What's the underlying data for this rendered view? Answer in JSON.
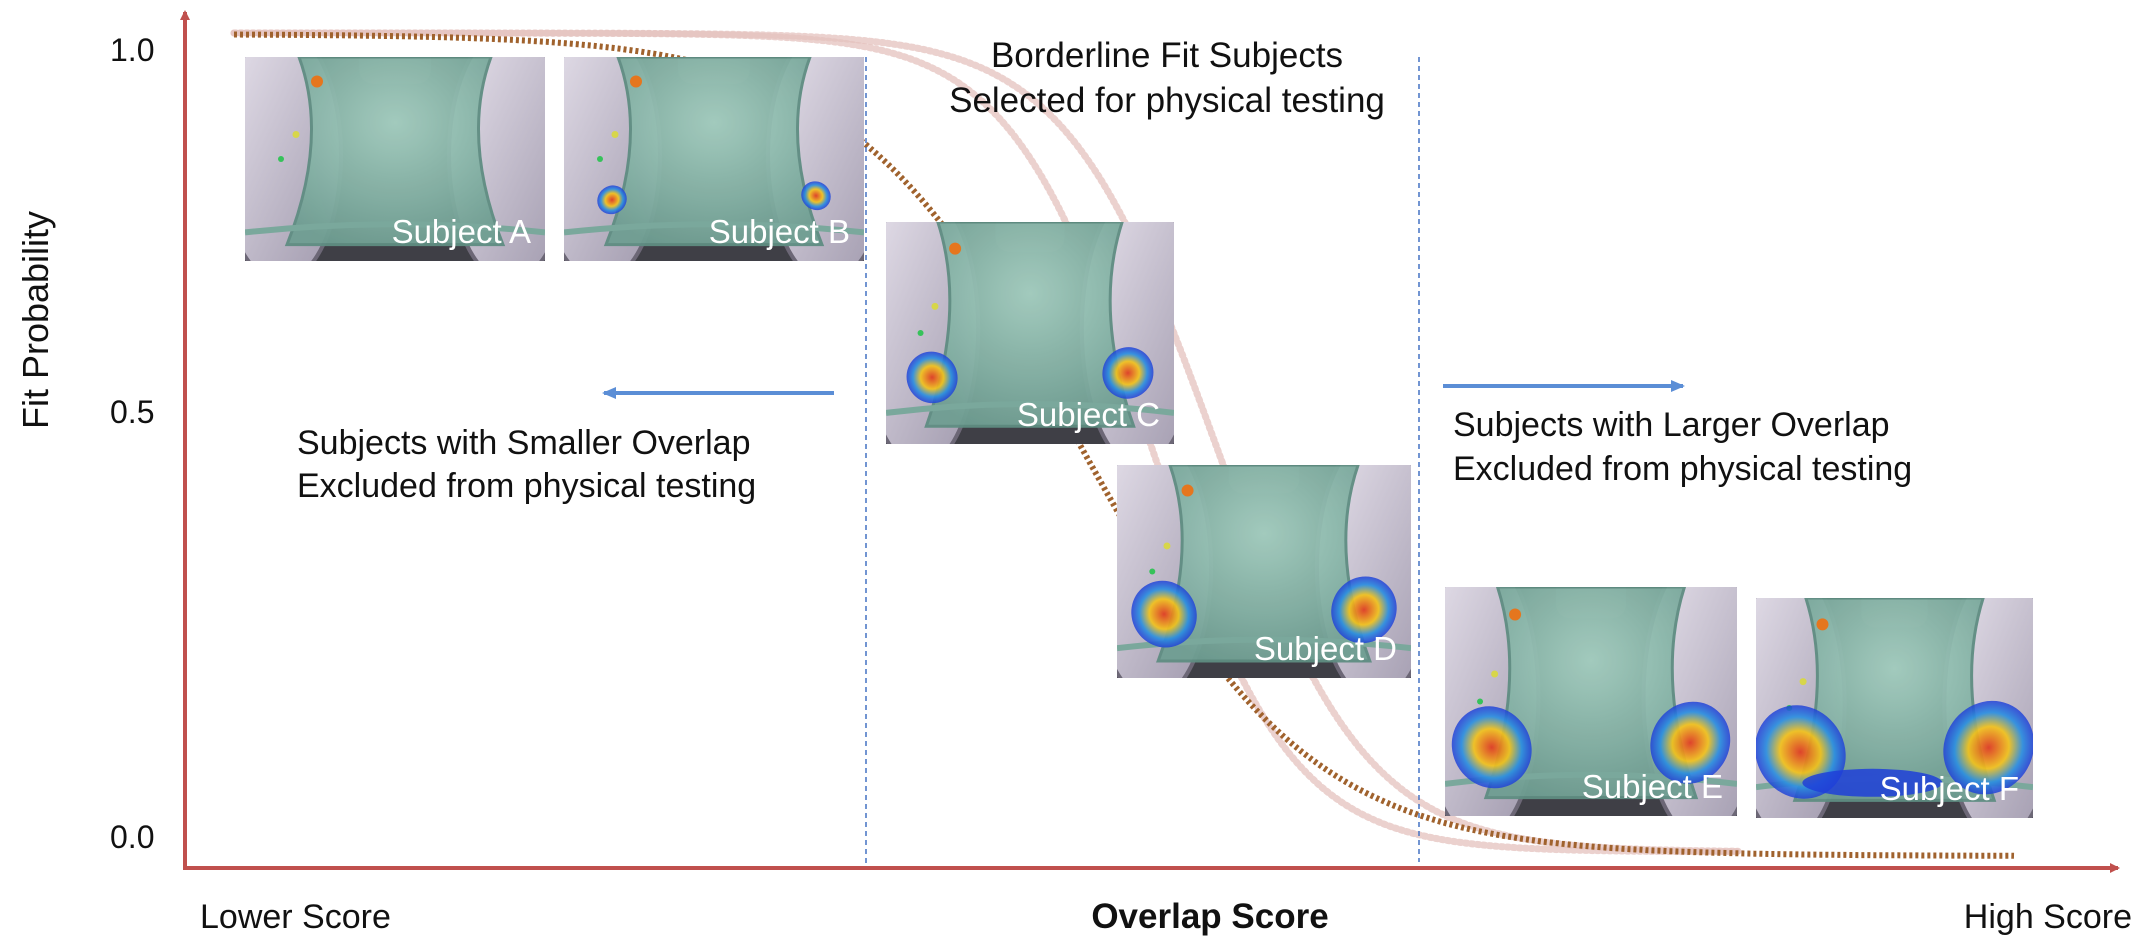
{
  "axes": {
    "y_label": "Fit Probability",
    "y_ticks": [
      "1.0",
      "0.5",
      "0.0"
    ],
    "x_label": "Overlap Score",
    "x_left": "Lower Score",
    "x_right": "High Score"
  },
  "annotations": {
    "middle": [
      "Borderline Fit Subjects",
      "Selected for physical testing"
    ],
    "left": [
      "Subjects with Smaller Overlap",
      "Excluded from physical testing"
    ],
    "right": [
      "Subjects with Larger Overlap",
      "Excluded from physical testing"
    ]
  },
  "subjects": [
    {
      "label": "Subject A",
      "overlap": "none"
    },
    {
      "label": "Subject B",
      "overlap": "minimal"
    },
    {
      "label": "Subject C",
      "overlap": "small"
    },
    {
      "label": "Subject D",
      "overlap": "moderate"
    },
    {
      "label": "Subject E",
      "overlap": "large"
    },
    {
      "label": "Subject F",
      "overlap": "very-large"
    }
  ],
  "colors": {
    "axis": "#c0504d",
    "main_curve": "#a0622d",
    "faint_curve": "#e4c1bd",
    "divider": "#4472c4",
    "arrow": "#5b8ed6",
    "torso": "#8fbfb0",
    "hot": "#e03a1e",
    "cold": "#1f3fd8"
  }
}
